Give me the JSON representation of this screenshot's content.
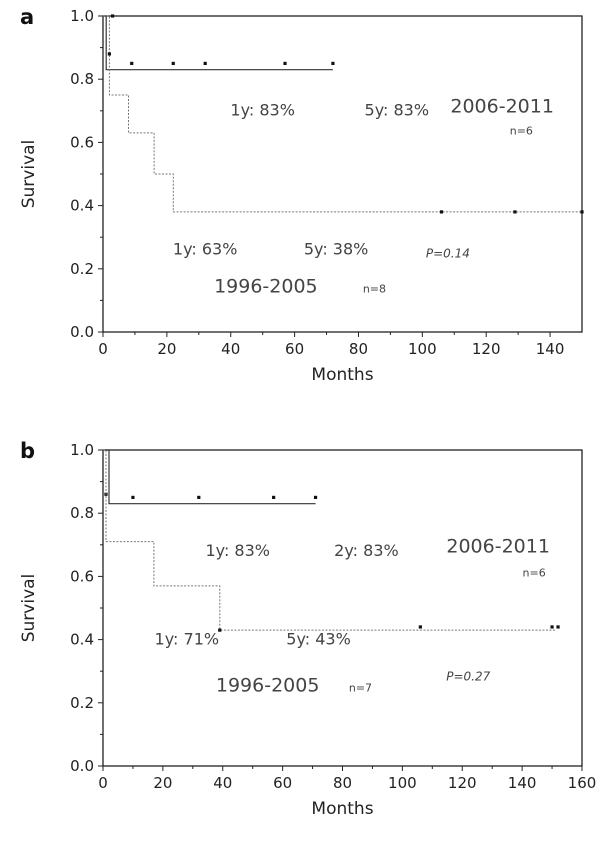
{
  "chart_data": [
    {
      "type": "line",
      "panel": "a",
      "xlabel": "Months",
      "ylabel": "Survival",
      "xlim": [
        0,
        150
      ],
      "ylim": [
        0.0,
        1.0
      ],
      "x_ticks": [
        0,
        20,
        40,
        60,
        80,
        100,
        120,
        140
      ],
      "x_tick_labels": [
        "0",
        "20",
        "40",
        "60",
        "80",
        "100",
        "120",
        "140"
      ],
      "y_ticks": [
        0.0,
        0.2,
        0.4,
        0.6,
        0.8,
        1.0
      ],
      "y_tick_labels": [
        "0.0",
        "0.2",
        "0.4",
        "0.6",
        "0.8",
        "1.0"
      ],
      "grid": false,
      "series": [
        {
          "name": "2006-2011",
          "steps": [
            [
              0,
              1.0
            ],
            [
              1,
              1.0
            ],
            [
              1,
              0.83
            ],
            [
              72,
              0.83
            ]
          ],
          "censored": [
            [
              3,
              1.0
            ],
            [
              9,
              0.85
            ],
            [
              22,
              0.85
            ],
            [
              32,
              0.85
            ],
            [
              57,
              0.85
            ],
            [
              72,
              0.85
            ]
          ]
        },
        {
          "name": "1996-2005",
          "steps": [
            [
              0,
              1.0
            ],
            [
              2,
              1.0
            ],
            [
              2,
              0.75
            ],
            [
              8,
              0.75
            ],
            [
              8,
              0.63
            ],
            [
              16,
              0.63
            ],
            [
              16,
              0.5
            ],
            [
              22,
              0.5
            ],
            [
              22,
              0.38
            ],
            [
              150,
              0.38
            ]
          ],
          "censored": [
            [
              2,
              0.88
            ],
            [
              106,
              0.38
            ],
            [
              129,
              0.38
            ],
            [
              150,
              0.38
            ]
          ]
        }
      ]
    },
    {
      "type": "line",
      "panel": "b",
      "xlabel": "Months",
      "ylabel": "Survival",
      "xlim": [
        0,
        160
      ],
      "ylim": [
        0.0,
        1.0
      ],
      "x_ticks": [
        0,
        20,
        40,
        60,
        80,
        100,
        120,
        140,
        160
      ],
      "x_tick_labels": [
        "0",
        "20",
        "40",
        "60",
        "80",
        "100",
        "120",
        "140",
        "160"
      ],
      "y_ticks": [
        0.0,
        0.2,
        0.4,
        0.6,
        0.8,
        1.0
      ],
      "y_tick_labels": [
        "0.0",
        "0.2",
        "0.4",
        "0.6",
        "0.8",
        "1.0"
      ],
      "grid": false,
      "series": [
        {
          "name": "2006-2011",
          "steps": [
            [
              0,
              1.0
            ],
            [
              2,
              1.0
            ],
            [
              2,
              0.83
            ],
            [
              71,
              0.83
            ]
          ],
          "censored": [
            [
              1,
              0.86
            ],
            [
              10,
              0.85
            ],
            [
              32,
              0.85
            ],
            [
              57,
              0.85
            ],
            [
              71,
              0.85
            ]
          ]
        },
        {
          "name": "1996-2005",
          "steps": [
            [
              0,
              1.0
            ],
            [
              1,
              1.0
            ],
            [
              1,
              0.71
            ],
            [
              17,
              0.71
            ],
            [
              17,
              0.57
            ],
            [
              39,
              0.57
            ],
            [
              39,
              0.43
            ],
            [
              151,
              0.43
            ]
          ],
          "censored": [
            [
              39,
              0.43
            ],
            [
              106,
              0.44
            ],
            [
              150,
              0.44
            ],
            [
              152,
              0.44
            ]
          ]
        }
      ]
    }
  ],
  "panels": [
    {
      "letter": "a",
      "annotations": [
        {
          "text": "1y: 83%",
          "x": 50,
          "y": 0.685,
          "size": 16
        },
        {
          "text": "5y: 83%",
          "x": 92,
          "y": 0.685,
          "size": 16
        },
        {
          "text": "2006-2011",
          "x": 125,
          "y": 0.695,
          "size": 19
        },
        {
          "text": "n=6",
          "x": 131,
          "y": 0.625,
          "size": 11
        },
        {
          "text": "1y: 63%",
          "x": 32,
          "y": 0.245,
          "size": 16
        },
        {
          "text": "5y: 38%",
          "x": 73,
          "y": 0.245,
          "size": 16
        },
        {
          "text": "P=0.14",
          "x": 108,
          "y": 0.235,
          "size": 12,
          "italic": true
        },
        {
          "text": "1996-2005",
          "x": 51,
          "y": 0.125,
          "size": 19
        },
        {
          "text": "n=8",
          "x": 85,
          "y": 0.125,
          "size": 11
        }
      ]
    },
    {
      "letter": "b",
      "annotations": [
        {
          "text": "1y: 83%",
          "x": 45,
          "y": 0.665,
          "size": 16
        },
        {
          "text": "2y: 83%",
          "x": 88,
          "y": 0.665,
          "size": 16
        },
        {
          "text": "2006-2011",
          "x": 132,
          "y": 0.675,
          "size": 19
        },
        {
          "text": "n=6",
          "x": 144,
          "y": 0.6,
          "size": 11
        },
        {
          "text": "1y: 71%",
          "x": 28,
          "y": 0.385,
          "size": 16
        },
        {
          "text": "5y: 43%",
          "x": 72,
          "y": 0.385,
          "size": 16
        },
        {
          "text": "P=0.27",
          "x": 122,
          "y": 0.27,
          "size": 12,
          "italic": true
        },
        {
          "text": "1996-2005",
          "x": 55,
          "y": 0.235,
          "size": 19
        },
        {
          "text": "n=7",
          "x": 86,
          "y": 0.235,
          "size": 11
        }
      ]
    }
  ]
}
